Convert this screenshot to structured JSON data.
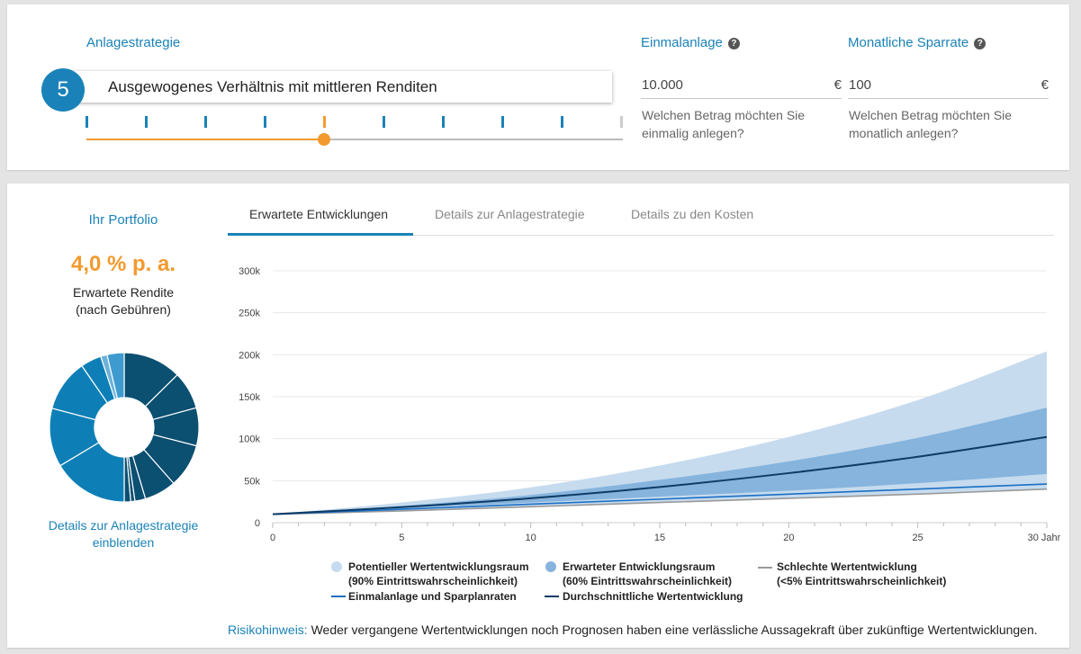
{
  "strategy": {
    "title": "Anlagestrategie",
    "level": "5",
    "description": "Ausgewogenes Verhältnis mit mittleren Renditen",
    "slider_level": 5,
    "slider_positions": 10
  },
  "one_time": {
    "title": "Einmalanlage",
    "value": "10.000",
    "currency": "€",
    "hint": "Welchen Betrag möchten Sie einmalig anlegen?"
  },
  "monthly": {
    "title": "Monatliche Sparrate",
    "value": "100",
    "currency": "€",
    "hint": "Welchen Betrag möchten Sie monatlich anlegen?"
  },
  "help_icon": "?",
  "portfolio": {
    "title": "Ihr Portfolio",
    "return_value": "4,0 % p. a.",
    "return_label_1": "Erwartete Rendite",
    "return_label_2": "(nach Gebühren)",
    "details_link_1": "Details zur Anlagestrategie",
    "details_link_2": "einblenden"
  },
  "tabs": [
    {
      "label": "Erwartete Entwicklungen",
      "active": true
    },
    {
      "label": "Details zur Anlagestrategie",
      "active": false
    },
    {
      "label": "Details zu den Kosten",
      "active": false
    }
  ],
  "legend": {
    "potential_1": "Potentieller Wertentwicklungsraum",
    "potential_2": "(90% Eintrittswahrscheinlichkeit)",
    "expected_1": "Erwarteter Entwicklungsraum",
    "expected_2": "(60% Eintrittswahrscheinlichkeit)",
    "bad_1": "Schlechte Wertentwicklung",
    "bad_2": "(<5% Eintrittswahrscheinlichkeit)",
    "invested": "Einmalanlage und Sparplanraten",
    "average": "Durchschnittliche Wertentwicklung"
  },
  "risk": {
    "label": "Risikohinweis:",
    "text": " Weder vergangene Wertentwicklungen noch Prognosen haben eine verlässliche Aussagekraft über zukünftige Wertentwicklungen."
  },
  "colors": {
    "accent": "#1a82b8",
    "orange": "#f29a2e",
    "band_outer": "#c6dbee",
    "band_inner": "#86b4dd",
    "average_line": "#0d3b66",
    "invested_line": "#1a6fc4",
    "bad_line": "#999999"
  },
  "donut_slices": [
    {
      "value": 12.6,
      "color": "#0b4f71"
    },
    {
      "value": 8.2,
      "color": "#0b4f71"
    },
    {
      "value": 8.2,
      "color": "#0b4f71"
    },
    {
      "value": 9.5,
      "color": "#0b4f71"
    },
    {
      "value": 6.9,
      "color": "#0b4f71"
    },
    {
      "value": 2.3,
      "color": "#0b4f71"
    },
    {
      "value": 0.9,
      "color": "#0b4f71"
    },
    {
      "value": 1.4,
      "color": "#0b4f71"
    },
    {
      "value": 16.4,
      "color": "#0e7fb6"
    },
    {
      "value": 12.7,
      "color": "#0e7fb6"
    },
    {
      "value": 11.3,
      "color": "#0e7fb6"
    },
    {
      "value": 4.5,
      "color": "#0e7fb6"
    },
    {
      "value": 1.4,
      "color": "#6cb1d9"
    },
    {
      "value": 3.7,
      "color": "#3d9bcf"
    }
  ],
  "chart_data": {
    "type": "area",
    "x_unit": "Jahre",
    "xlim": [
      0,
      30
    ],
    "ylim": [
      0,
      300000
    ],
    "x_ticks": [
      "0",
      "5",
      "10",
      "15",
      "20",
      "25",
      "30 Jahre"
    ],
    "x_tick_values": [
      0,
      5,
      10,
      15,
      20,
      25,
      30
    ],
    "y_ticks": [
      "0",
      "50k",
      "100k",
      "150k",
      "200k",
      "250k",
      "300k"
    ],
    "y_tick_values": [
      0,
      50000,
      100000,
      150000,
      200000,
      250000,
      300000
    ],
    "grid": true,
    "x": [
      0,
      5,
      10,
      15,
      20,
      25,
      30
    ],
    "series": [
      {
        "name": "Potentieller Wertentwicklungsraum (90% Eintrittswahrscheinlichkeit)",
        "kind": "band",
        "low": [
          10000,
          14000,
          19000,
          24000,
          29000,
          34000,
          40000
        ],
        "high": [
          10000,
          24000,
          42000,
          68000,
          102000,
          146000,
          204000
        ]
      },
      {
        "name": "Erwarteter Entwicklungsraum (60% Eintrittswahrscheinlichkeit)",
        "kind": "band",
        "low": [
          10000,
          17000,
          24000,
          31000,
          38000,
          47000,
          58000
        ],
        "high": [
          10000,
          20000,
          33000,
          51000,
          73000,
          101000,
          137000
        ]
      },
      {
        "name": "Schlechte Wertentwicklung (<5% Eintrittswahrscheinlichkeit)",
        "kind": "line",
        "values": [
          10000,
          14000,
          19000,
          24000,
          29000,
          34000,
          40000
        ]
      },
      {
        "name": "Einmalanlage und Sparplanraten",
        "kind": "line",
        "values": [
          10000,
          16000,
          22000,
          28000,
          34000,
          40000,
          46000
        ]
      },
      {
        "name": "Durchschnittliche Wertentwicklung",
        "kind": "line",
        "values": [
          10000,
          18500,
          29000,
          42500,
          59000,
          78500,
          102000
        ]
      }
    ]
  }
}
